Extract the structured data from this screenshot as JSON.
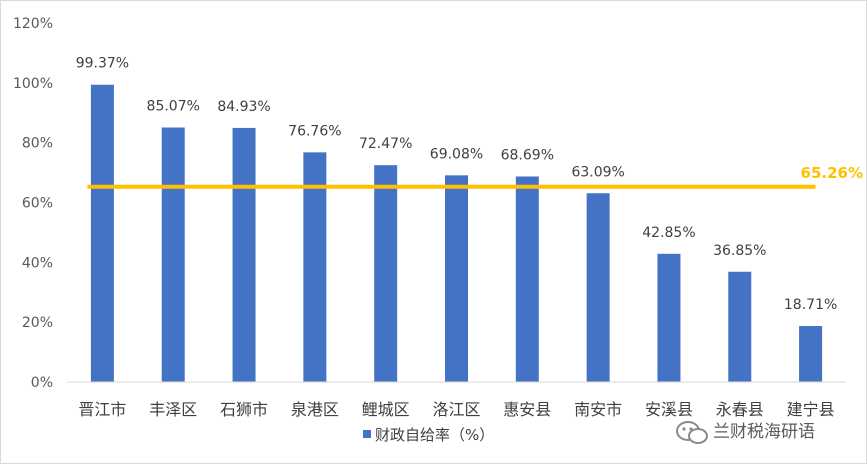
{
  "chart_data": {
    "type": "bar",
    "categories": [
      "晋江市",
      "丰泽区",
      "石狮市",
      "泉港区",
      "鲤城区",
      "洛江区",
      "惠安县",
      "南安市",
      "安溪县",
      "永春县",
      "建宁县"
    ],
    "series": [
      {
        "name": "财政自给率（%）",
        "values": [
          99.37,
          85.07,
          84.93,
          76.76,
          72.47,
          69.08,
          68.69,
          63.09,
          42.85,
          36.85,
          18.71
        ],
        "labels": [
          "99.37%",
          "85.07%",
          "84.93%",
          "76.76%",
          "72.47%",
          "69.08%",
          "68.69%",
          "63.09%",
          "42.85%",
          "36.85%",
          "18.71%"
        ],
        "color": "#4472c4"
      }
    ],
    "average": {
      "value": 65.26,
      "label": "65.26%",
      "color": "#ffc000"
    },
    "yticks": [
      "0%",
      "20%",
      "40%",
      "60%",
      "80%",
      "100%",
      "120%"
    ],
    "ylim": [
      0,
      120
    ],
    "grid": false,
    "legend_position": "bottom"
  },
  "watermark": {
    "text": "兰财税海研语",
    "icon": "wechat-icon"
  }
}
